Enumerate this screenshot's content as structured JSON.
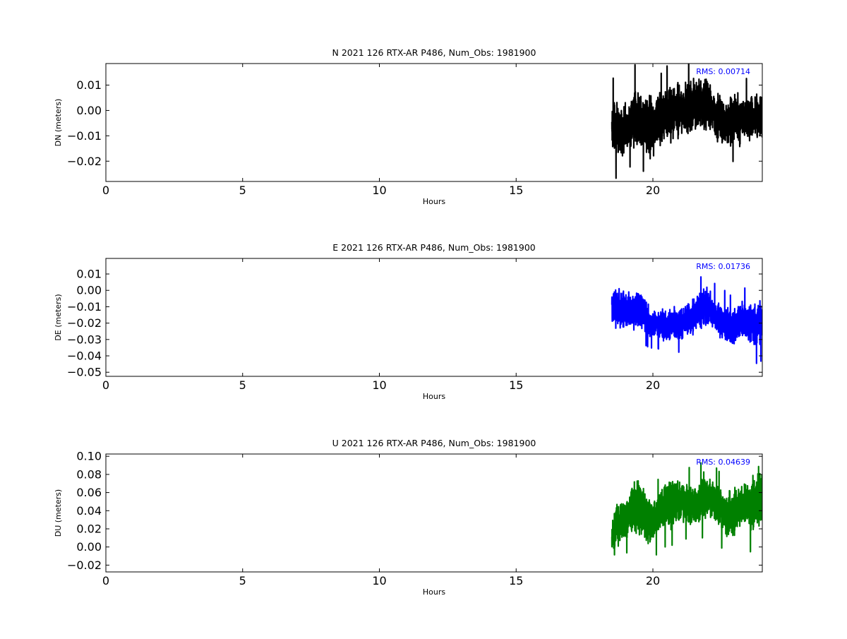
{
  "chart_data": [
    {
      "type": "line",
      "title": "N 2021 126 RTX-AR  P486, Num_Obs: 1981900",
      "xlabel": "Hours",
      "ylabel": "DN (meters)",
      "xlim": [
        0,
        24
      ],
      "ylim": [
        -0.028,
        0.0185
      ],
      "xticks": [
        0,
        5,
        10,
        15,
        20
      ],
      "xtick_labels": [
        "0",
        "5",
        "10",
        "15",
        "20"
      ],
      "yticks": [
        0.01,
        0.0,
        -0.01,
        -0.02
      ],
      "ytick_labels": [
        "0.01",
        "0.00",
        "−0.01",
        "−0.02"
      ],
      "grid": false,
      "annotation": "RMS:  0.00714",
      "series": [
        {
          "color": "#000000",
          "x_start": 18.5,
          "x_end": 24.0,
          "envelope": {
            "x": [
              18.5,
              18.7,
              18.9,
              19.1,
              19.3,
              19.5,
              19.7,
              19.9,
              20.1,
              20.3,
              20.5,
              20.7,
              20.9,
              21.1,
              21.3,
              21.5,
              21.7,
              21.9,
              22.1,
              22.3,
              22.5,
              22.7,
              22.9,
              23.1,
              23.3,
              23.5,
              23.7,
              23.9,
              24.0
            ],
            "center": [
              -0.006,
              -0.008,
              -0.009,
              -0.006,
              -0.002,
              -0.004,
              -0.005,
              -0.007,
              -0.006,
              -0.003,
              -0.002,
              0.0,
              -0.001,
              0.001,
              0.002,
              0.002,
              0.004,
              0.003,
              0.001,
              -0.002,
              -0.004,
              -0.005,
              -0.004,
              -0.003,
              -0.004,
              -0.003,
              -0.002,
              -0.003,
              -0.003
            ],
            "amplitude": [
              0.012,
              0.012,
              0.01,
              0.01,
              0.013,
              0.012,
              0.012,
              0.014,
              0.012,
              0.011,
              0.012,
              0.013,
              0.012,
              0.011,
              0.012,
              0.012,
              0.011,
              0.011,
              0.01,
              0.011,
              0.01,
              0.01,
              0.01,
              0.011,
              0.01,
              0.01,
              0.011,
              0.011,
              0.01
            ]
          }
        }
      ]
    },
    {
      "type": "line",
      "title": "E 2021 126 RTX-AR  P486, Num_Obs: 1981900",
      "xlabel": "Hours",
      "ylabel": "DE (meters)",
      "xlim": [
        0,
        24
      ],
      "ylim": [
        -0.0525,
        0.0195
      ],
      "xticks": [
        0,
        5,
        10,
        15,
        20
      ],
      "xtick_labels": [
        "0",
        "5",
        "10",
        "15",
        "20"
      ],
      "yticks": [
        0.01,
        0.0,
        -0.01,
        -0.02,
        -0.03,
        -0.04,
        -0.05
      ],
      "ytick_labels": [
        "0.01",
        "0.00",
        "−0.01",
        "−0.02",
        "−0.03",
        "−0.04",
        "−0.05"
      ],
      "grid": false,
      "annotation": "RMS:  0.01736",
      "series": [
        {
          "color": "#0000ff",
          "x_start": 18.5,
          "x_end": 24.0,
          "envelope": {
            "x": [
              18.5,
              18.7,
              18.9,
              19.1,
              19.3,
              19.5,
              19.7,
              19.9,
              20.1,
              20.3,
              20.5,
              20.7,
              20.9,
              21.1,
              21.3,
              21.5,
              21.7,
              21.9,
              22.1,
              22.3,
              22.5,
              22.7,
              22.9,
              23.1,
              23.3,
              23.5,
              23.7,
              23.9,
              24.0
            ],
            "center": [
              -0.01,
              -0.011,
              -0.012,
              -0.013,
              -0.013,
              -0.012,
              -0.014,
              -0.021,
              -0.02,
              -0.021,
              -0.022,
              -0.02,
              -0.021,
              -0.019,
              -0.017,
              -0.015,
              -0.012,
              -0.01,
              -0.011,
              -0.016,
              -0.019,
              -0.022,
              -0.023,
              -0.02,
              -0.018,
              -0.019,
              -0.021,
              -0.02,
              -0.02
            ],
            "amplitude": [
              0.013,
              0.014,
              0.014,
              0.013,
              0.012,
              0.013,
              0.012,
              0.009,
              0.009,
              0.01,
              0.011,
              0.01,
              0.011,
              0.01,
              0.011,
              0.012,
              0.012,
              0.013,
              0.012,
              0.012,
              0.013,
              0.013,
              0.012,
              0.013,
              0.012,
              0.013,
              0.015,
              0.015,
              0.014
            ]
          }
        }
      ]
    },
    {
      "type": "line",
      "title": "U 2021 126 RTX-AR  P486, Num_Obs: 1981900",
      "xlabel": "Hours",
      "ylabel": "DU (meters)",
      "xlim": [
        0,
        24
      ],
      "ylim": [
        -0.0275,
        0.1025
      ],
      "xticks": [
        0,
        5,
        10,
        15,
        20
      ],
      "xtick_labels": [
        "0",
        "5",
        "10",
        "15",
        "20"
      ],
      "yticks": [
        0.1,
        0.08,
        0.06,
        0.04,
        0.02,
        0.0,
        -0.02
      ],
      "ytick_labels": [
        "0.10",
        "0.08",
        "0.06",
        "0.04",
        "0.02",
        "0.00",
        "−0.02"
      ],
      "grid": false,
      "annotation": "RMS:  0.04639",
      "series": [
        {
          "color": "#008000",
          "x_start": 18.5,
          "x_end": 24.0,
          "envelope": {
            "x": [
              18.5,
              18.7,
              18.9,
              19.1,
              19.3,
              19.5,
              19.7,
              19.9,
              20.1,
              20.3,
              20.5,
              20.7,
              20.9,
              21.1,
              21.3,
              21.5,
              21.7,
              21.9,
              22.1,
              22.3,
              22.5,
              22.7,
              22.9,
              23.1,
              23.3,
              23.5,
              23.7,
              23.9,
              24.0
            ],
            "center": [
              0.01,
              0.022,
              0.03,
              0.035,
              0.045,
              0.045,
              0.035,
              0.028,
              0.03,
              0.04,
              0.045,
              0.05,
              0.048,
              0.05,
              0.048,
              0.045,
              0.05,
              0.055,
              0.055,
              0.048,
              0.04,
              0.035,
              0.038,
              0.043,
              0.045,
              0.048,
              0.045,
              0.055,
              0.05
            ],
            "amplitude": [
              0.022,
              0.03,
              0.025,
              0.025,
              0.035,
              0.032,
              0.035,
              0.028,
              0.025,
              0.025,
              0.028,
              0.03,
              0.028,
              0.025,
              0.025,
              0.025,
              0.025,
              0.028,
              0.025,
              0.025,
              0.025,
              0.03,
              0.028,
              0.025,
              0.025,
              0.03,
              0.038,
              0.035,
              0.03
            ]
          }
        }
      ]
    }
  ]
}
